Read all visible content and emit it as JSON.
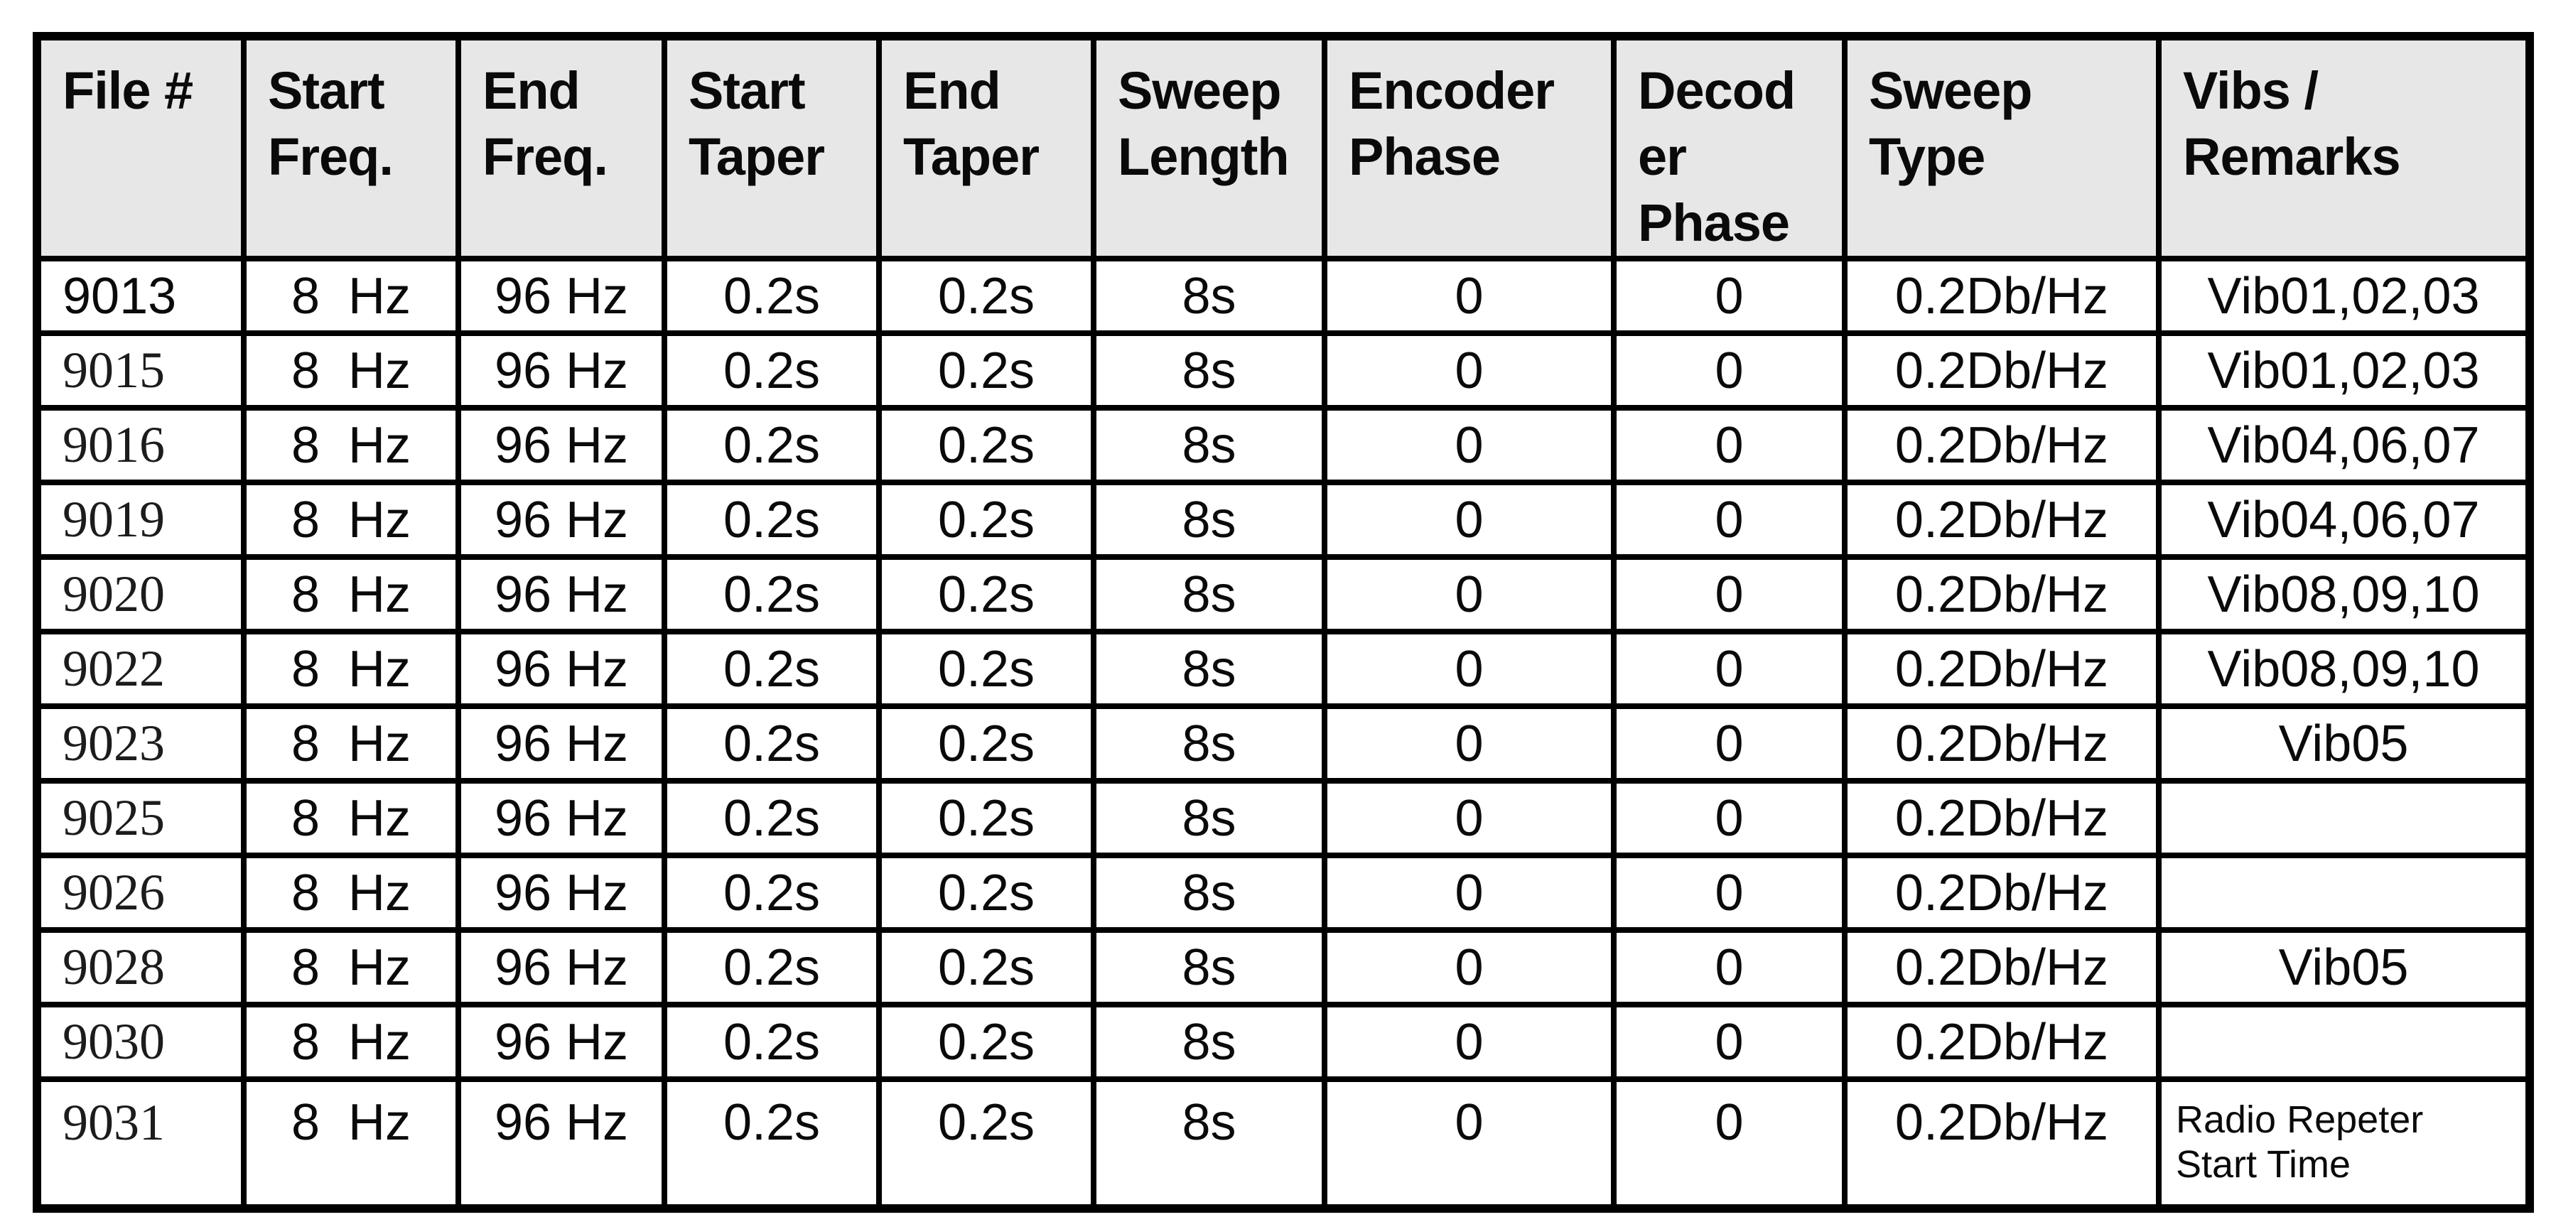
{
  "colors": {
    "page_bg": "#ffffff",
    "header_bg": "#e7e7e7",
    "border": "#000000",
    "text": "#0a0a0a"
  },
  "table": {
    "name": "vibroseis-sweep-parameters",
    "columns": [
      {
        "id": "file",
        "label": "File #"
      },
      {
        "id": "start_freq",
        "label": "Start\nFreq."
      },
      {
        "id": "end_freq",
        "label": "End\nFreq."
      },
      {
        "id": "start_taper",
        "label": "Start\nTaper"
      },
      {
        "id": "end_taper",
        "label": "End\nTaper"
      },
      {
        "id": "sweep_length",
        "label": "Sweep\nLength"
      },
      {
        "id": "encoder_phase",
        "label": "Encoder\nPhase"
      },
      {
        "id": "decoder_phase",
        "label": "Decod\ner\nPhase"
      },
      {
        "id": "sweep_type",
        "label": "Sweep\nType"
      },
      {
        "id": "remarks",
        "label": "Vibs /\nRemarks"
      }
    ],
    "rows": [
      {
        "file": "9013",
        "start_freq": "8  Hz",
        "end_freq": "96 Hz",
        "start_taper": "0.2s",
        "end_taper": "0.2s",
        "sweep_length": "8s",
        "encoder_phase": "0",
        "decoder_phase": "0",
        "sweep_type": "0.2Db/Hz",
        "remarks": "Vib01,02,03"
      },
      {
        "file": "9015",
        "start_freq": "8  Hz",
        "end_freq": "96 Hz",
        "start_taper": "0.2s",
        "end_taper": "0.2s",
        "sweep_length": "8s",
        "encoder_phase": "0",
        "decoder_phase": "0",
        "sweep_type": "0.2Db/Hz",
        "remarks": "Vib01,02,03"
      },
      {
        "file": "9016",
        "start_freq": "8  Hz",
        "end_freq": "96 Hz",
        "start_taper": "0.2s",
        "end_taper": "0.2s",
        "sweep_length": "8s",
        "encoder_phase": "0",
        "decoder_phase": "0",
        "sweep_type": "0.2Db/Hz",
        "remarks": "Vib04,06,07"
      },
      {
        "file": "9019",
        "start_freq": "8  Hz",
        "end_freq": "96 Hz",
        "start_taper": "0.2s",
        "end_taper": "0.2s",
        "sweep_length": "8s",
        "encoder_phase": "0",
        "decoder_phase": "0",
        "sweep_type": "0.2Db/Hz",
        "remarks": "Vib04,06,07"
      },
      {
        "file": "9020",
        "start_freq": "8  Hz",
        "end_freq": "96 Hz",
        "start_taper": "0.2s",
        "end_taper": "0.2s",
        "sweep_length": "8s",
        "encoder_phase": "0",
        "decoder_phase": "0",
        "sweep_type": "0.2Db/Hz",
        "remarks": "Vib08,09,10"
      },
      {
        "file": "9022",
        "start_freq": "8  Hz",
        "end_freq": "96 Hz",
        "start_taper": "0.2s",
        "end_taper": "0.2s",
        "sweep_length": "8s",
        "encoder_phase": "0",
        "decoder_phase": "0",
        "sweep_type": "0.2Db/Hz",
        "remarks": "Vib08,09,10"
      },
      {
        "file": "9023",
        "start_freq": "8  Hz",
        "end_freq": "96 Hz",
        "start_taper": "0.2s",
        "end_taper": "0.2s",
        "sweep_length": "8s",
        "encoder_phase": "0",
        "decoder_phase": "0",
        "sweep_type": "0.2Db/Hz",
        "remarks": "Vib05"
      },
      {
        "file": "9025",
        "start_freq": "8  Hz",
        "end_freq": "96 Hz",
        "start_taper": "0.2s",
        "end_taper": "0.2s",
        "sweep_length": "8s",
        "encoder_phase": "0",
        "decoder_phase": "0",
        "sweep_type": "0.2Db/Hz",
        "remarks": ""
      },
      {
        "file": "9026",
        "start_freq": "8  Hz",
        "end_freq": "96 Hz",
        "start_taper": "0.2s",
        "end_taper": "0.2s",
        "sweep_length": "8s",
        "encoder_phase": "0",
        "decoder_phase": "0",
        "sweep_type": "0.2Db/Hz",
        "remarks": ""
      },
      {
        "file": "9028",
        "start_freq": "8  Hz",
        "end_freq": "96 Hz",
        "start_taper": "0.2s",
        "end_taper": "0.2s",
        "sweep_length": "8s",
        "encoder_phase": "0",
        "decoder_phase": "0",
        "sweep_type": "0.2Db/Hz",
        "remarks": "Vib05"
      },
      {
        "file": "9030",
        "start_freq": "8  Hz",
        "end_freq": "96 Hz",
        "start_taper": "0.2s",
        "end_taper": "0.2s",
        "sweep_length": "8s",
        "encoder_phase": "0",
        "decoder_phase": "0",
        "sweep_type": "0.2Db/Hz",
        "remarks": ""
      },
      {
        "file": "9031",
        "start_freq": "8  Hz",
        "end_freq": "96 Hz",
        "start_taper": "0.2s",
        "end_taper": "0.2s",
        "sweep_length": "8s",
        "encoder_phase": "0",
        "decoder_phase": "0",
        "sweep_type": "0.2Db/Hz",
        "remarks": "Radio Repeter\nStart Time"
      }
    ]
  }
}
